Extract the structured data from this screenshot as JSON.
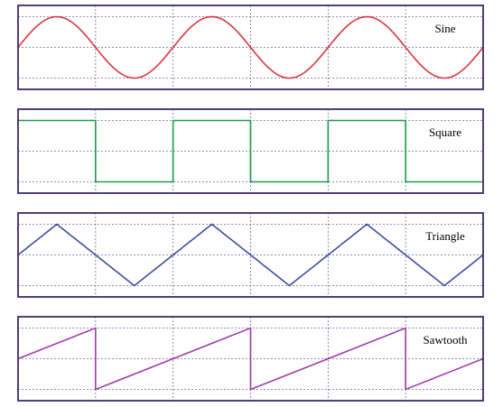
{
  "panels": [
    {
      "id": "sine",
      "label": "Sine",
      "shape": "sine",
      "color": "#d9363e",
      "cycles": 3,
      "phase_start": "rising-from-center"
    },
    {
      "id": "square",
      "label": "Square",
      "shape": "square",
      "color": "#1a9b4a",
      "cycles": 3,
      "phase_start": "high"
    },
    {
      "id": "triangle",
      "label": "Triangle",
      "shape": "triangle",
      "color": "#3a4f9c",
      "cycles": 3,
      "phase_start": "rising-from-center"
    },
    {
      "id": "sawtooth",
      "label": "Sawtooth",
      "shape": "sawtooth",
      "color": "#a23aa8",
      "cycles": 3,
      "phase_start": "rising-from-center"
    }
  ],
  "style": {
    "frame_color": "#3d2a6a",
    "grid_color": "#6a6aa8",
    "grid_vertical_divisions": 6,
    "grid_horizontal_lines": 3,
    "grid_dashed": true
  }
}
